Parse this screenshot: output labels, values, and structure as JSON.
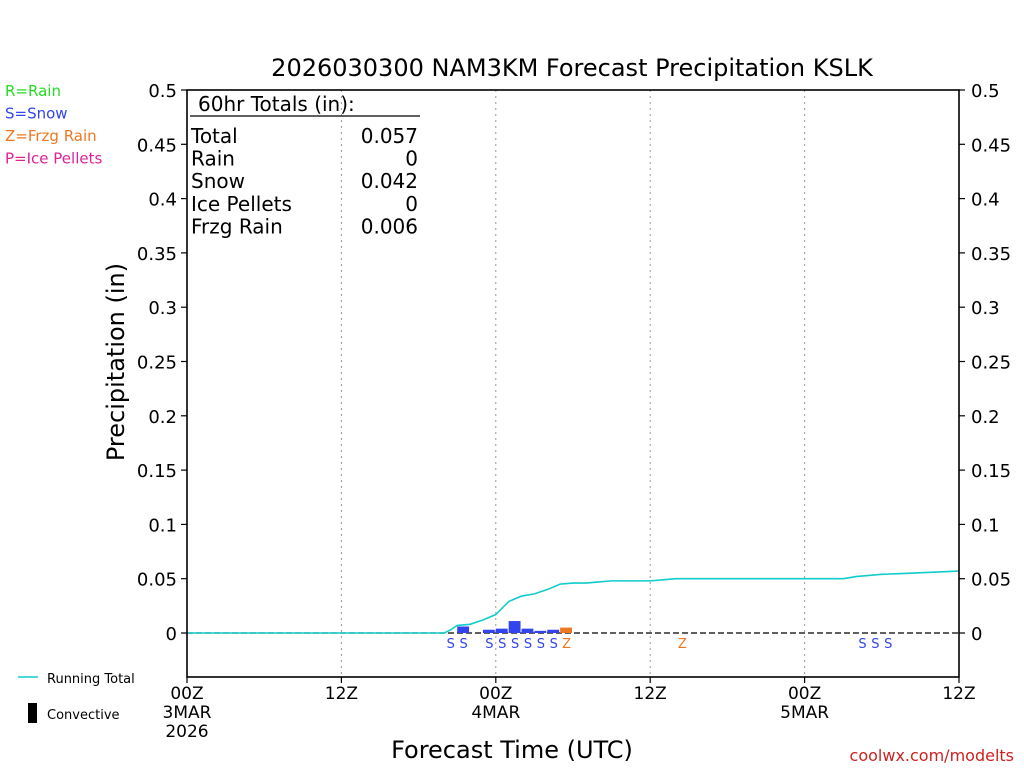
{
  "chart_data": {
    "type": "bar",
    "title": "2026030300 NAM3KM Forecast Precipitation KSLK",
    "xlabel": "Forecast Time (UTC)",
    "ylabel": "Precipitation (in)",
    "ylim": [
      -0.04,
      0.5
    ],
    "xlim_hours": [
      0,
      60
    ],
    "yticks": [
      0,
      0.05,
      0.1,
      0.15,
      0.2,
      0.25,
      0.3,
      0.35,
      0.4,
      0.45,
      0.5
    ],
    "ytick_labels": [
      "0",
      "0.05",
      "0.1",
      "0.15",
      "0.2",
      "0.25",
      "0.3",
      "0.35",
      "0.4",
      "0.45",
      "0.5"
    ],
    "xticks": [
      {
        "hour": 0,
        "lines": [
          "00Z",
          "3MAR",
          "2026"
        ]
      },
      {
        "hour": 12,
        "lines": [
          "12Z"
        ]
      },
      {
        "hour": 24,
        "lines": [
          "00Z",
          "4MAR"
        ]
      },
      {
        "hour": 36,
        "lines": [
          "12Z"
        ]
      },
      {
        "hour": 48,
        "lines": [
          "00Z",
          "5MAR"
        ]
      },
      {
        "hour": 60,
        "lines": [
          "12Z"
        ]
      }
    ],
    "legend_types": [
      {
        "label": "R=Rain",
        "color": "#22dd22"
      },
      {
        "label": "S=Snow",
        "color": "#3344ee"
      },
      {
        "label": "Z=Frzg Rain",
        "color": "#ee7722"
      },
      {
        "label": "P=Ice Pellets",
        "color": "#dd2299"
      }
    ],
    "legend_lines": [
      {
        "label": "Running Total",
        "color": "#11cccc",
        "kind": "line"
      },
      {
        "label": "Convective",
        "color": "#000000",
        "kind": "bar"
      }
    ],
    "totals": {
      "heading": "60hr Totals (in):",
      "rows": [
        {
          "label": "Total",
          "value": "0.057"
        },
        {
          "label": "Rain",
          "value": "0"
        },
        {
          "label": "Snow",
          "value": "0.042"
        },
        {
          "label": "Ice Pellets",
          "value": "0"
        },
        {
          "label": "Frzg Rain",
          "value": "0.006"
        }
      ]
    },
    "series": [
      {
        "name": "Hourly precipitation",
        "kind": "bar",
        "bars": [
          {
            "hour": 21,
            "value": 0.006,
            "type": "snow"
          },
          {
            "hour": 23,
            "value": 0.003,
            "type": "snow"
          },
          {
            "hour": 24,
            "value": 0.004,
            "type": "snow"
          },
          {
            "hour": 25,
            "value": 0.011,
            "type": "snow"
          },
          {
            "hour": 26,
            "value": 0.004,
            "type": "snow"
          },
          {
            "hour": 27,
            "value": 0.002,
            "type": "snow"
          },
          {
            "hour": 28,
            "value": 0.003,
            "type": "snow"
          },
          {
            "hour": 29,
            "value": 0.005,
            "type": "frzg"
          }
        ]
      },
      {
        "name": "Running Total",
        "kind": "line",
        "x": [
          0,
          19,
          20,
          20.5,
          21,
          22,
          23,
          24,
          25,
          26,
          27,
          28,
          29,
          30,
          31,
          32,
          33,
          34,
          35,
          36,
          37,
          38,
          40,
          42,
          44,
          46,
          48,
          49,
          50,
          51,
          52,
          53,
          54,
          56,
          58,
          60
        ],
        "y": [
          0,
          0,
          0,
          0.003,
          0.007,
          0.008,
          0.012,
          0.017,
          0.029,
          0.034,
          0.036,
          0.04,
          0.045,
          0.046,
          0.046,
          0.047,
          0.048,
          0.048,
          0.048,
          0.048,
          0.049,
          0.05,
          0.05,
          0.05,
          0.05,
          0.05,
          0.05,
          0.05,
          0.05,
          0.05,
          0.052,
          0.053,
          0.054,
          0.055,
          0.056,
          0.057
        ]
      }
    ],
    "type_markers": [
      {
        "hour": 20.5,
        "letter": "S",
        "type": "snow"
      },
      {
        "hour": 21.5,
        "letter": "S",
        "type": "snow"
      },
      {
        "hour": 23.5,
        "letter": "S",
        "type": "snow"
      },
      {
        "hour": 24.5,
        "letter": "S",
        "type": "snow"
      },
      {
        "hour": 25.5,
        "letter": "S",
        "type": "snow"
      },
      {
        "hour": 26.5,
        "letter": "S",
        "type": "snow"
      },
      {
        "hour": 27.5,
        "letter": "S",
        "type": "snow"
      },
      {
        "hour": 28.5,
        "letter": "S",
        "type": "snow"
      },
      {
        "hour": 29.5,
        "letter": "Z",
        "type": "frzg"
      },
      {
        "hour": 38.5,
        "letter": "Z",
        "type": "frzg"
      },
      {
        "hour": 52.5,
        "letter": "S",
        "type": "snow"
      },
      {
        "hour": 53.5,
        "letter": "S",
        "type": "snow"
      },
      {
        "hour": 54.5,
        "letter": "S",
        "type": "snow"
      }
    ],
    "type_colors": {
      "snow": "#3344ee",
      "frzg": "#ee7722",
      "rain": "#22dd22",
      "ice": "#dd2299"
    },
    "line_color": "#11cccc",
    "credit": "coolwx.com/modelts"
  }
}
